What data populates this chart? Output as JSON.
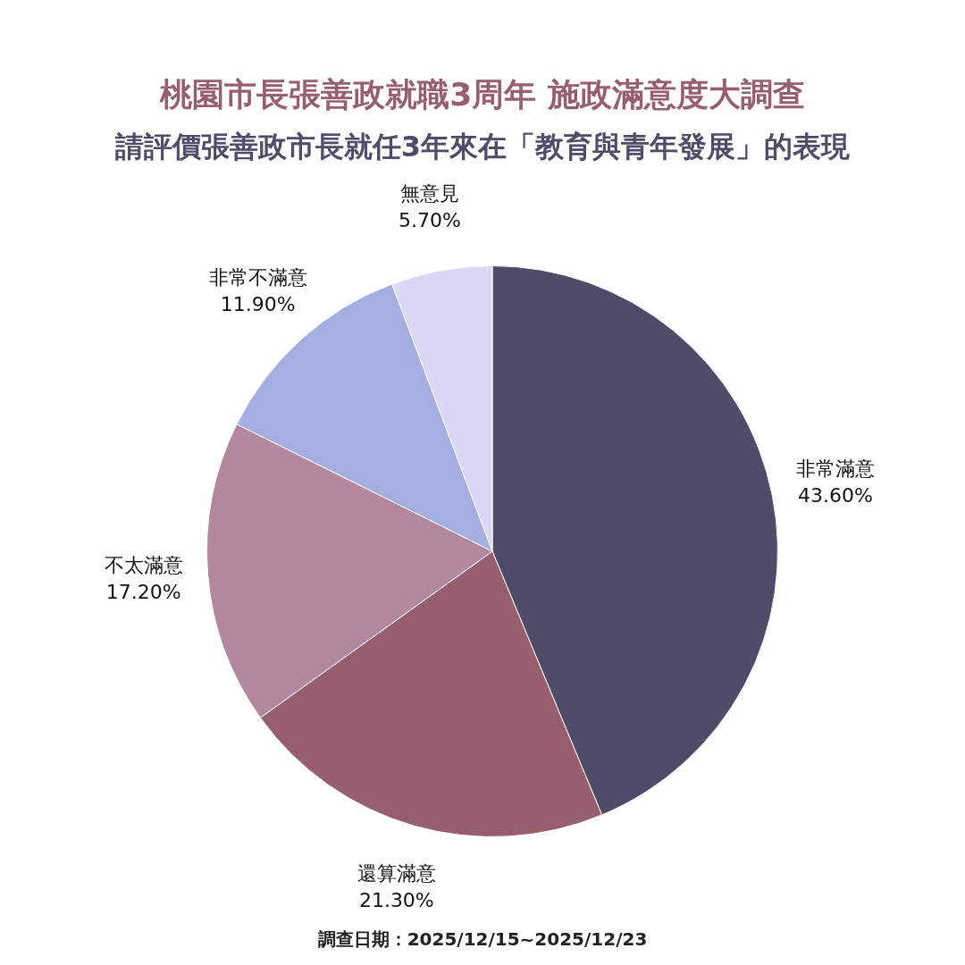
{
  "chart_data": {
    "type": "pie",
    "title": "桃園市長張善政就職3周年  施政滿意度大調查",
    "subtitle": "請評價張善政市長就任3年來在「教育與青年發展」的表現",
    "categories": [
      "非常滿意",
      "還算滿意",
      "不太滿意",
      "非常不滿意",
      "無意見"
    ],
    "values": [
      43.6,
      21.3,
      17.2,
      11.9,
      5.7
    ],
    "value_labels": [
      "43.60%",
      "21.30%",
      "17.20%",
      "11.90%",
      "5.70%"
    ],
    "colors": [
      "#4f4b68",
      "#975f6e",
      "#b3879e",
      "#a5aee0",
      "#dcd7f5"
    ],
    "legend": false,
    "annotations": [
      "調查日期：2025/12/15~2025/12/23"
    ]
  }
}
